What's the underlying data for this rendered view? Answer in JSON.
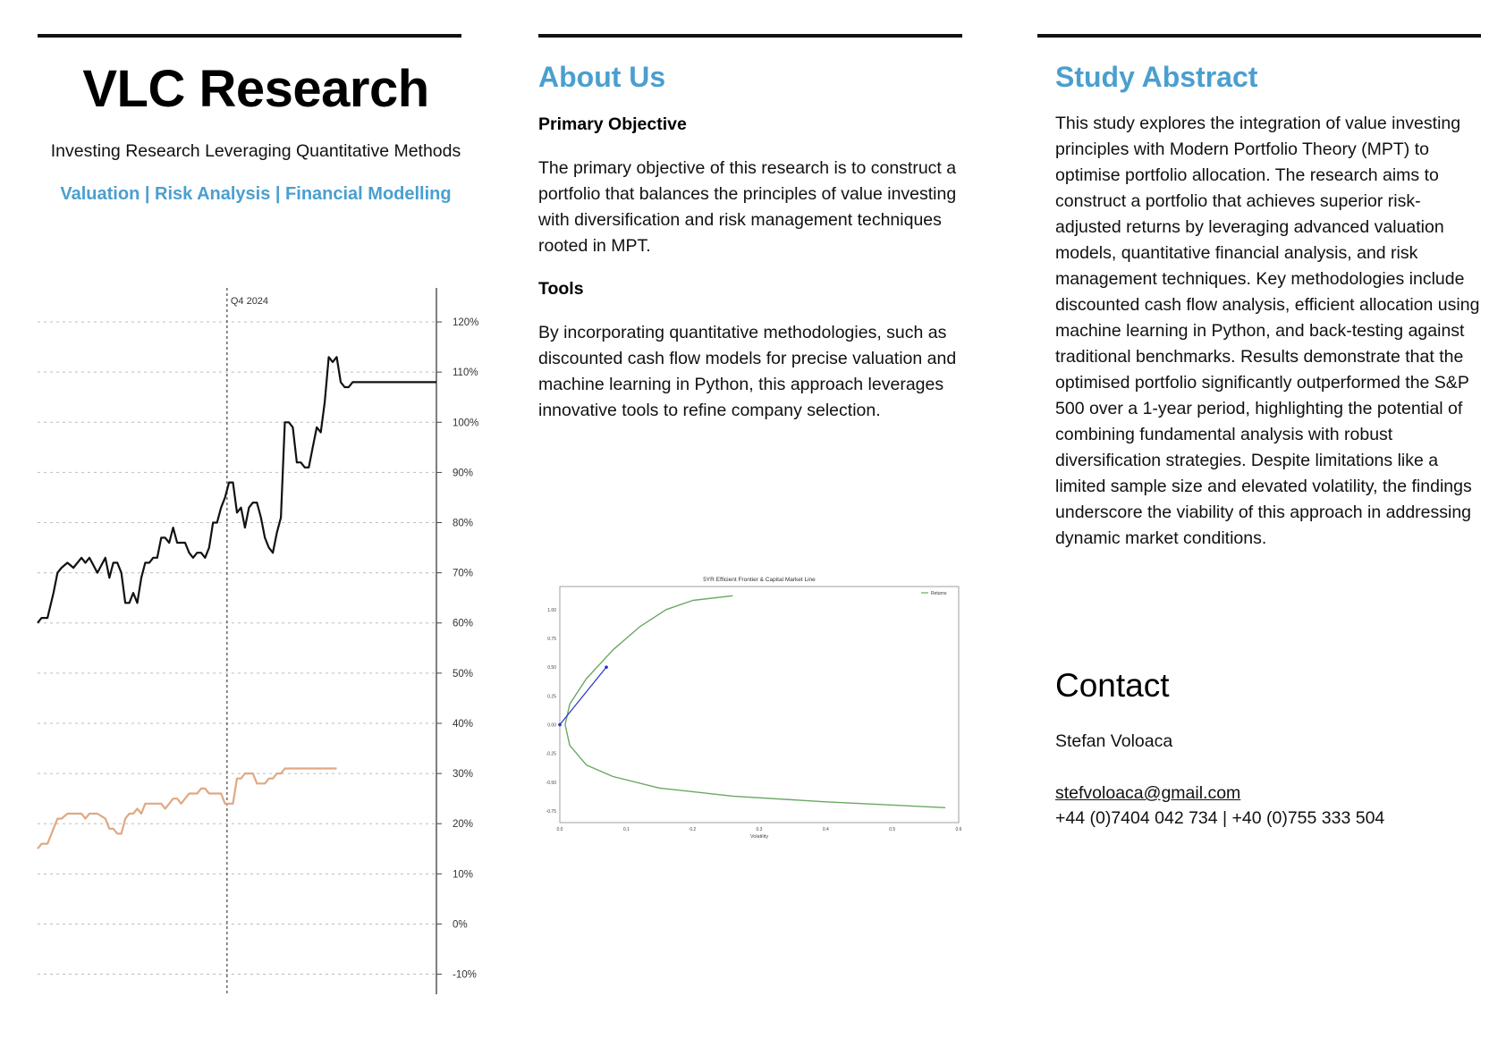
{
  "brand": {
    "title": "VLC Research",
    "subtitle": "Investing Research Leveraging Quantitative Methods",
    "tags": "Valuation | Risk Analysis | Financial Modelling"
  },
  "about": {
    "heading": "About Us",
    "objective_heading": "Primary Objective",
    "objective_text": "The primary objective of this research is to construct a portfolio that balances the principles of value investing with diversification and risk management techniques rooted in MPT.",
    "tools_heading": "Tools",
    "tools_text": "By incorporating quantitative methodologies, such as discounted cash flow models for precise valuation and machine learning in Python, this approach leverages innovative tools to refine company selection."
  },
  "abstract": {
    "heading": "Study Abstract",
    "text": "This study explores the integration of value investing principles with Modern Portfolio Theory (MPT) to optimise portfolio allocation. The research aims to construct a portfolio that achieves superior risk-adjusted returns by leveraging advanced valuation models, quantitative financial analysis, and risk management techniques. Key methodologies include discounted cash flow analysis, efficient allocation using machine learning in Python, and back-testing against traditional benchmarks. Results demonstrate that the optimised portfolio significantly outperformed the S&P 500 over a 1-year period, highlighting the potential of combining fundamental analysis with robust diversification strategies. Despite limitations like a limited sample size and elevated volatility, the findings underscore the viability of this approach in addressing dynamic market conditions."
  },
  "contact": {
    "heading": "Contact",
    "name": "Stefan Voloaca",
    "email": "stefvoloaca@gmail.com",
    "phones": "+44 (0)7404 042 734 | +40 (0)755 333 504"
  },
  "colors": {
    "accent": "#4a9fcf",
    "portfolio_line": "#111111",
    "benchmark_line": "#e0a882",
    "frontier_line": "#6aa864",
    "cml_line": "#2233cc"
  },
  "chart_data": [
    {
      "type": "line",
      "title": "",
      "xlabel": "",
      "ylabel": "",
      "ylim": [
        -14,
        125
      ],
      "y_ticks": [
        "-10%",
        "0%",
        "10%",
        "20%",
        "30%",
        "40%",
        "50%",
        "60%",
        "70%",
        "80%",
        "90%",
        "100%",
        "110%",
        "120%"
      ],
      "y_tick_values": [
        -10,
        0,
        10,
        20,
        30,
        40,
        50,
        60,
        70,
        80,
        90,
        100,
        110,
        120
      ],
      "axis_position": "right",
      "grid": true,
      "annotation": {
        "label": "Q4 2024",
        "x": 95
      },
      "x_range": [
        0,
        200
      ],
      "series": [
        {
          "x": [
            0,
            2,
            5,
            8,
            10,
            12,
            15,
            18,
            22,
            24,
            26,
            30,
            34,
            36,
            38,
            40,
            42,
            44,
            46,
            48,
            50,
            52,
            54,
            56,
            58,
            60,
            62,
            64,
            66,
            68,
            70,
            72,
            74,
            76,
            78,
            80,
            82,
            84,
            86,
            88,
            90,
            92,
            94,
            96,
            98,
            100,
            102,
            104,
            106,
            108,
            110,
            112,
            114,
            116,
            118,
            120,
            122,
            124,
            126,
            128,
            130,
            132,
            134,
            136,
            138,
            140,
            142,
            144,
            146,
            148,
            150,
            152,
            154,
            156,
            158,
            160,
            162,
            164,
            166,
            168,
            170,
            172,
            174,
            176,
            178,
            180,
            182,
            184,
            186,
            188,
            190,
            192,
            194,
            196,
            198,
            200
          ],
          "values": [
            60,
            61,
            61,
            66,
            70,
            71,
            72,
            71,
            73,
            72,
            73,
            70,
            73,
            69,
            72,
            72,
            70,
            64,
            64,
            66,
            64,
            69,
            72,
            72,
            73,
            73,
            77,
            77,
            76,
            79,
            76,
            76,
            76,
            74,
            73,
            74,
            74,
            73,
            75,
            80,
            80,
            83,
            85,
            88,
            88,
            82,
            83,
            79,
            83,
            84,
            84,
            81,
            77,
            75,
            74,
            78,
            81,
            100,
            100,
            99,
            92,
            92,
            91,
            91,
            95,
            99,
            98,
            104,
            113,
            112,
            113,
            108,
            107,
            107,
            108,
            108,
            108,
            108,
            108,
            108,
            108,
            108,
            108,
            108,
            108,
            108,
            108,
            108,
            108,
            108,
            108,
            108,
            108,
            108,
            108,
            108
          ]
        },
        {
          "x": [
            0,
            2,
            5,
            8,
            10,
            12,
            15,
            18,
            22,
            24,
            26,
            30,
            34,
            36,
            38,
            40,
            42,
            44,
            46,
            48,
            50,
            52,
            54,
            56,
            58,
            60,
            62,
            64,
            66,
            68,
            70,
            72,
            74,
            76,
            78,
            80,
            82,
            84,
            86,
            88,
            90,
            92,
            94,
            96,
            98,
            100,
            102,
            104,
            106,
            108,
            110,
            112,
            114,
            116,
            118,
            120,
            122,
            124,
            126,
            128,
            130,
            132,
            134,
            136,
            138,
            140,
            142,
            144,
            146,
            148,
            150
          ],
          "values": [
            15,
            16,
            16,
            19,
            21,
            21,
            22,
            22,
            22,
            21,
            22,
            22,
            21,
            19,
            19,
            18,
            18,
            21,
            22,
            22,
            23,
            22,
            24,
            24,
            24,
            24,
            24,
            23,
            24,
            25,
            25,
            24,
            25,
            26,
            26,
            26,
            27,
            27,
            26,
            26,
            26,
            26,
            24,
            24,
            24,
            29,
            29,
            30,
            30,
            30,
            28,
            28,
            28,
            29,
            29,
            30,
            30,
            31,
            31,
            31,
            31,
            31,
            31,
            31,
            31,
            31,
            31,
            31,
            31,
            31,
            31
          ]
        }
      ]
    },
    {
      "type": "line",
      "title": "5YR Efficient Frontier & Capital Market Line",
      "xlabel": "Volatility",
      "ylabel": "",
      "xlim": [
        0,
        0.4
      ],
      "ylim": [
        -0.85,
        1.2
      ],
      "x_ticks": [
        "0.0",
        "0.1",
        "0.2",
        "0.3",
        "0.4",
        "0.5",
        "0.6"
      ],
      "y_ticks": [
        "-0.75",
        "-0.50",
        "-0.25",
        "0.00",
        "0.25",
        "0.50",
        "0.75",
        "1.00"
      ],
      "legend": "top-right",
      "series": [
        {
          "name": "Returns",
          "x": [
            0.26,
            0.2,
            0.16,
            0.12,
            0.08,
            0.04,
            0.015,
            0.008,
            0.015,
            0.04,
            0.08,
            0.15,
            0.26,
            0.4,
            0.58
          ],
          "values": [
            1.12,
            1.08,
            1.0,
            0.85,
            0.65,
            0.4,
            0.18,
            0.0,
            -0.18,
            -0.35,
            -0.45,
            -0.55,
            -0.62,
            -0.67,
            -0.72
          ]
        },
        {
          "x": [
            0.0,
            0.07
          ],
          "values": [
            0.0,
            0.5
          ]
        }
      ]
    }
  ]
}
